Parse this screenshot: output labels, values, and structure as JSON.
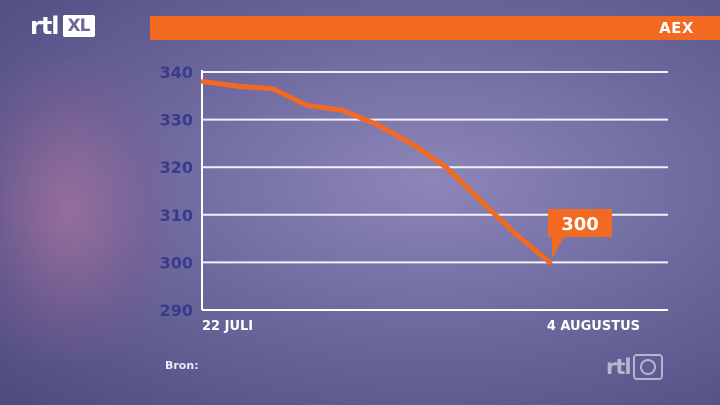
{
  "logo": {
    "text": "rtl",
    "badge": "XL"
  },
  "corner_logo": {
    "text": "rtl"
  },
  "header": {
    "title": "AEX"
  },
  "footer": {
    "source_label": "Bron:"
  },
  "colors": {
    "accent": "#f26a21",
    "axis_text": "#3a3a8c",
    "gridline": "#ffffff"
  },
  "chart_data": {
    "type": "line",
    "title": "AEX",
    "xlabel": "",
    "ylabel": "",
    "ylim": [
      290,
      340
    ],
    "yticks": [
      290,
      300,
      310,
      320,
      330,
      340
    ],
    "x_tick_labels": [
      {
        "index": 0,
        "label": "22 JULI"
      },
      {
        "index": 10,
        "label": "4 AUGUSTUS"
      }
    ],
    "series": [
      {
        "values": [
          338,
          337,
          336.5,
          333,
          332,
          329,
          325,
          320,
          313,
          306,
          300
        ]
      }
    ],
    "annotation": {
      "index": 10,
      "label": "300"
    },
    "grid": true
  }
}
